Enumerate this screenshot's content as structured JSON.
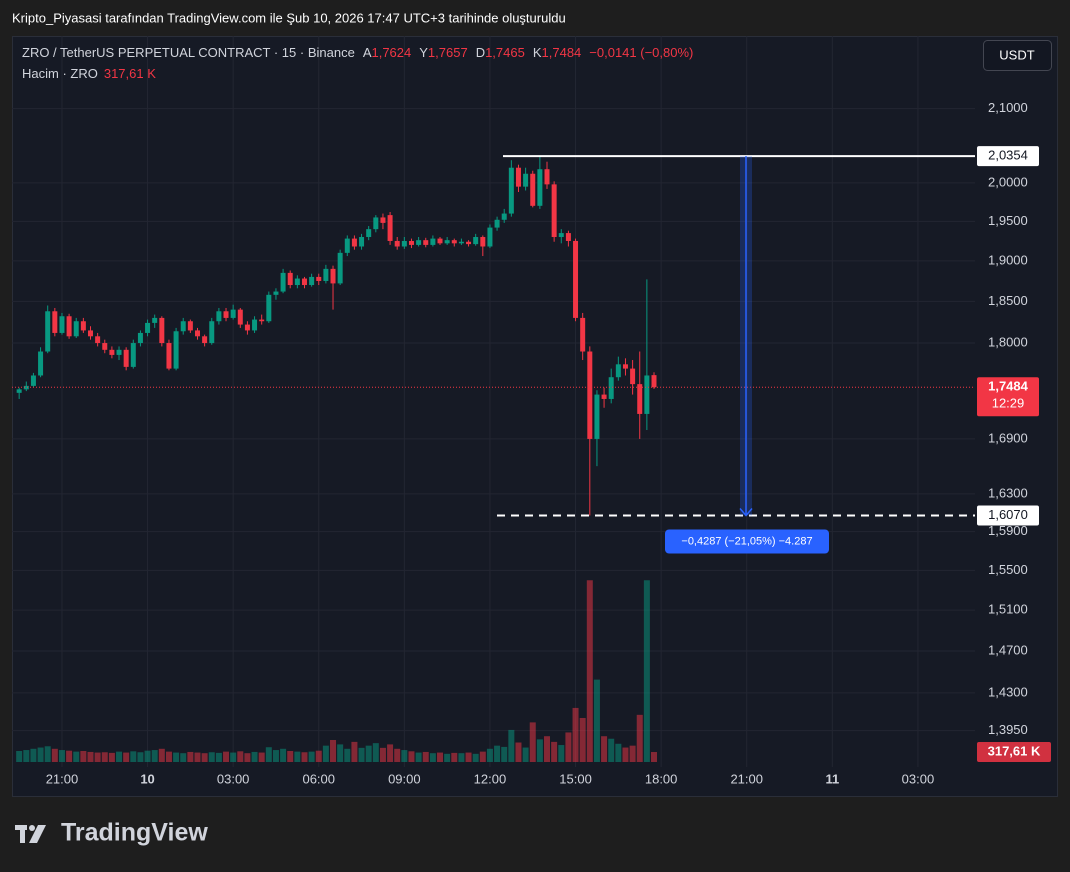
{
  "caption": "Kripto_Piyasasi tarafından TradingView.com ile Şub 10, 2026 17:47 UTC+3 tarihinde oluşturuldu",
  "brand": "TradingView",
  "chart_data": {
    "type": "candlestick",
    "header": {
      "symbol": "ZRO / TetherUS PERPETUAL CONTRACT · 15 · Binance",
      "ohlc_labels": [
        {
          "key": "A",
          "value": "1,7624"
        },
        {
          "key": "Y",
          "value": "1,7657"
        },
        {
          "key": "D",
          "value": "1,7465"
        },
        {
          "key": "K",
          "value": "1,7484"
        }
      ],
      "change": "−0,0141 (−0,80%)",
      "volume_title": "Hacim · ZRO",
      "volume_value": "317,61 K"
    },
    "currency": "USDT",
    "categories": [
      null,
      null,
      null,
      null,
      null,
      null,
      "21:00",
      null,
      null,
      null,
      null,
      null,
      null,
      null,
      null,
      null,
      null,
      null,
      "10",
      null,
      null,
      null,
      null,
      null,
      null,
      null,
      null,
      null,
      null,
      null,
      "03:00",
      null,
      null,
      null,
      null,
      null,
      null,
      null,
      null,
      null,
      null,
      null,
      "06:00",
      null,
      null,
      null,
      null,
      null,
      null,
      null,
      null,
      null,
      null,
      null,
      "09:00",
      null,
      null,
      null,
      null,
      null,
      null,
      null,
      null,
      null,
      null,
      null,
      "12:00",
      null,
      null,
      null,
      null,
      null,
      null,
      null,
      null,
      null,
      null,
      null,
      "15:00",
      null,
      null,
      null,
      null,
      null,
      null,
      null,
      null,
      null,
      null,
      null,
      "18:00",
      null,
      null,
      null,
      null,
      null,
      null,
      null,
      null,
      null,
      null,
      null,
      "21:00",
      null,
      null,
      null,
      null,
      null,
      null,
      null,
      null,
      null,
      null,
      null,
      "11",
      null,
      null,
      null,
      null,
      null,
      null,
      null,
      null,
      null,
      null,
      null,
      "03:00"
    ],
    "open": [
      1.742,
      1.746,
      1.75,
      1.762,
      1.79,
      1.838,
      1.812,
      1.832,
      1.808,
      1.826,
      1.815,
      1.808,
      1.8,
      1.792,
      1.786,
      1.792,
      1.772,
      1.8,
      1.812,
      1.824,
      1.83,
      1.8,
      1.77,
      1.814,
      1.826,
      1.815,
      1.808,
      1.8,
      1.826,
      1.838,
      1.83,
      1.84,
      1.822,
      1.815,
      1.828,
      1.826,
      1.858,
      1.862,
      1.885,
      1.87,
      1.878,
      1.87,
      1.88,
      1.875,
      1.89,
      1.872,
      1.91,
      1.928,
      1.918,
      1.93,
      1.94,
      1.955,
      1.958,
      1.925,
      1.918,
      1.925,
      1.92,
      1.926,
      1.92,
      1.928,
      1.922,
      1.926,
      1.922,
      1.924,
      1.921,
      1.93,
      1.918,
      1.942,
      1.952,
      1.96,
      2.02,
      1.995,
      2.012,
      1.97,
      2.018,
      1.998,
      1.93,
      1.935,
      1.925,
      1.83,
      1.79,
      1.69,
      1.74,
      1.735,
      1.76,
      1.775,
      1.77,
      1.752,
      1.718,
      1.7624,
      null,
      null,
      null,
      null,
      null,
      null,
      null,
      null,
      null,
      null,
      null,
      null,
      null,
      null,
      null,
      null,
      null,
      null,
      null,
      null,
      null,
      null,
      null,
      null,
      null,
      null,
      null,
      null,
      null,
      null,
      null,
      null,
      null,
      null,
      null,
      null,
      null
    ],
    "high": [
      1.748,
      1.755,
      1.765,
      1.795,
      1.845,
      1.842,
      1.836,
      1.835,
      1.83,
      1.83,
      1.82,
      1.812,
      1.804,
      1.796,
      1.796,
      1.795,
      1.804,
      1.815,
      1.828,
      1.834,
      1.832,
      1.804,
      1.818,
      1.83,
      1.828,
      1.818,
      1.81,
      1.83,
      1.842,
      1.842,
      1.846,
      1.842,
      1.826,
      1.832,
      1.834,
      1.862,
      1.866,
      1.89,
      1.888,
      1.882,
      1.88,
      1.884,
      1.884,
      1.895,
      1.894,
      1.914,
      1.932,
      1.932,
      1.934,
      1.944,
      1.958,
      1.96,
      1.962,
      1.93,
      1.93,
      1.928,
      1.93,
      1.929,
      1.932,
      1.93,
      1.93,
      1.928,
      1.928,
      1.926,
      1.934,
      1.932,
      1.946,
      1.956,
      1.966,
      2.03,
      2.024,
      2.02,
      2.016,
      2.0354,
      2.028,
      2.002,
      1.94,
      1.938,
      1.928,
      1.836,
      1.796,
      1.745,
      1.748,
      1.77,
      1.784,
      1.782,
      1.78,
      1.79,
      1.877,
      1.7657,
      null,
      null,
      null,
      null,
      null,
      null,
      null,
      null,
      null,
      null,
      null,
      null,
      null,
      null,
      null,
      null,
      null,
      null,
      null,
      null,
      null,
      null,
      null,
      null,
      null,
      null,
      null,
      null,
      null,
      null,
      null,
      null,
      null,
      null,
      null,
      null,
      null
    ],
    "low": [
      1.735,
      1.744,
      1.748,
      1.76,
      1.788,
      1.808,
      1.81,
      1.805,
      1.806,
      1.812,
      1.804,
      1.796,
      1.788,
      1.782,
      1.78,
      1.768,
      1.77,
      1.796,
      1.808,
      1.818,
      1.796,
      1.768,
      1.768,
      1.81,
      1.812,
      1.804,
      1.796,
      1.798,
      1.822,
      1.826,
      1.828,
      1.818,
      1.81,
      1.812,
      1.822,
      1.824,
      1.852,
      1.86,
      1.866,
      1.866,
      1.866,
      1.868,
      1.87,
      1.872,
      1.84,
      1.87,
      1.906,
      1.914,
      1.914,
      1.926,
      1.936,
      1.94,
      1.92,
      1.914,
      1.915,
      1.916,
      1.918,
      1.917,
      1.918,
      1.92,
      1.92,
      1.918,
      1.92,
      1.918,
      1.919,
      1.906,
      1.916,
      1.938,
      1.948,
      1.956,
      1.988,
      1.99,
      1.968,
      1.966,
      1.992,
      1.924,
      1.922,
      1.918,
      1.826,
      1.78,
      1.607,
      1.66,
      1.725,
      1.73,
      1.756,
      1.762,
      1.74,
      1.69,
      1.7,
      1.7465,
      null,
      null,
      null,
      null,
      null,
      null,
      null,
      null,
      null,
      null,
      null,
      null,
      null,
      null,
      null,
      null,
      null,
      null,
      null,
      null,
      null,
      null,
      null,
      null,
      null,
      null,
      null,
      null,
      null,
      null,
      null,
      null,
      null,
      null,
      null,
      null,
      null
    ],
    "close": [
      1.746,
      1.75,
      1.762,
      1.79,
      1.838,
      1.812,
      1.832,
      1.808,
      1.826,
      1.815,
      1.808,
      1.8,
      1.792,
      1.786,
      1.792,
      1.772,
      1.8,
      1.812,
      1.824,
      1.83,
      1.8,
      1.77,
      1.814,
      1.826,
      1.815,
      1.808,
      1.8,
      1.826,
      1.838,
      1.83,
      1.84,
      1.822,
      1.815,
      1.828,
      1.826,
      1.858,
      1.862,
      1.885,
      1.87,
      1.878,
      1.87,
      1.88,
      1.875,
      1.89,
      1.872,
      1.91,
      1.928,
      1.918,
      1.93,
      1.94,
      1.955,
      1.948,
      1.925,
      1.918,
      1.925,
      1.92,
      1.926,
      1.92,
      1.928,
      1.922,
      1.926,
      1.922,
      1.924,
      1.921,
      1.93,
      1.918,
      1.942,
      1.952,
      1.96,
      2.02,
      1.995,
      2.012,
      1.97,
      2.018,
      1.998,
      1.93,
      1.935,
      1.925,
      1.83,
      1.79,
      1.69,
      1.74,
      1.735,
      1.76,
      1.775,
      1.77,
      1.752,
      1.718,
      1.762,
      1.7484,
      null,
      null,
      null,
      null,
      null,
      null,
      null,
      null,
      null,
      null,
      null,
      null,
      null,
      null,
      null,
      null,
      null,
      null,
      null,
      null,
      null,
      null,
      null,
      null,
      null,
      null,
      null,
      null,
      null,
      null,
      null,
      null,
      null,
      null,
      null,
      null,
      null
    ],
    "volume": [
      350,
      380,
      420,
      460,
      500,
      420,
      380,
      360,
      330,
      350,
      320,
      300,
      310,
      290,
      330,
      300,
      340,
      310,
      360,
      380,
      420,
      330,
      300,
      280,
      320,
      300,
      280,
      310,
      290,
      330,
      300,
      340,
      280,
      320,
      300,
      470,
      380,
      420,
      350,
      330,
      310,
      330,
      360,
      520,
      700,
      560,
      420,
      640,
      450,
      520,
      600,
      450,
      560,
      420,
      380,
      340,
      300,
      320,
      280,
      300,
      260,
      290,
      280,
      300,
      260,
      330,
      420,
      520,
      480,
      1020,
      620,
      460,
      1260,
      720,
      820,
      640,
      540,
      940,
      1720,
      1400,
      5780,
      2620,
      820,
      740,
      580,
      460,
      520,
      1500,
      5780,
      317.61,
      null,
      null,
      null,
      null,
      null,
      null,
      null,
      null,
      null,
      null,
      null,
      null,
      null,
      null,
      null,
      null,
      null,
      null,
      null,
      null,
      null,
      null,
      null,
      null,
      null,
      null,
      null,
      null,
      null,
      null,
      null,
      null,
      null,
      null,
      null,
      null,
      null
    ],
    "volume_lim": [
      0,
      9000
    ],
    "up_color": "#089981",
    "down_color": "#f23645",
    "ylim": [
      1.362,
      2.197
    ],
    "log_scale": true,
    "grid": true,
    "yticks": [
      {
        "value": 2.1,
        "label": "2,1000"
      },
      {
        "value": 2.0,
        "label": "2,0000"
      },
      {
        "value": 1.95,
        "label": "1,9500"
      },
      {
        "value": 1.9,
        "label": "1,9000"
      },
      {
        "value": 1.85,
        "label": "1,8500"
      },
      {
        "value": 1.8,
        "label": "1,8000"
      },
      {
        "value": 1.69,
        "label": "1,6900"
      },
      {
        "value": 1.63,
        "label": "1,6300"
      },
      {
        "value": 1.59,
        "label": "1,5900"
      },
      {
        "value": 1.55,
        "label": "1,5500"
      },
      {
        "value": 1.51,
        "label": "1,5100"
      },
      {
        "value": 1.47,
        "label": "1,4700"
      },
      {
        "value": 1.43,
        "label": "1,4300"
      },
      {
        "value": 1.395,
        "label": "1,3950"
      }
    ],
    "lines": [
      {
        "value": 2.0354,
        "label": "2,0354",
        "style": "solid"
      },
      {
        "value": 1.607,
        "label": "1,6070",
        "style": "dashed"
      }
    ],
    "measure": {
      "label": "−0,4287 (−21,05%) −4.287"
    },
    "last_price": {
      "label": "1,7484",
      "countdown": "12:29"
    }
  }
}
